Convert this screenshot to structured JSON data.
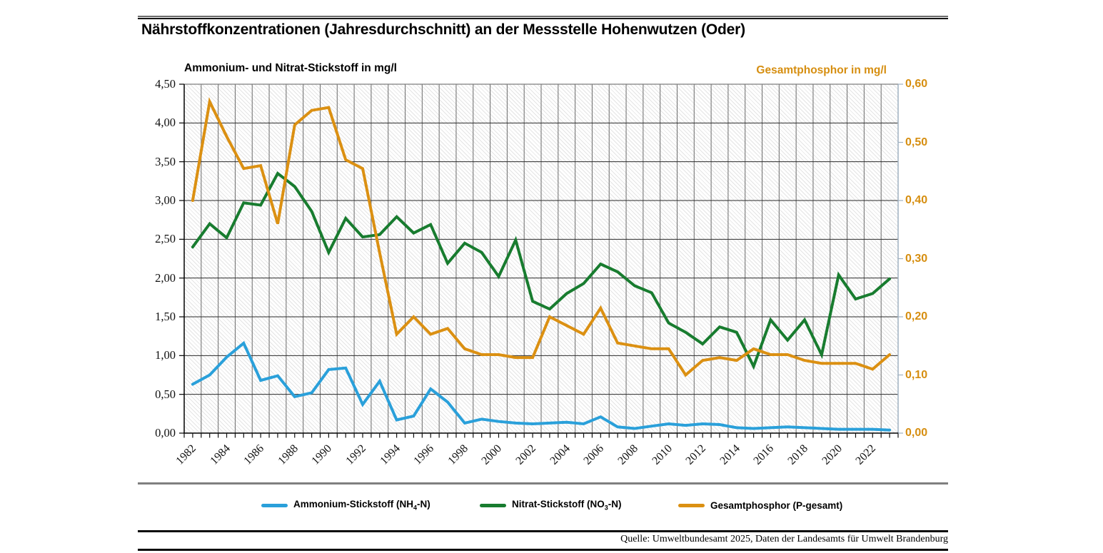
{
  "title": "Nährstoffkonzentrationen (Jahresdurchschnitt) an der Messstelle Hohenwutzen (Oder)",
  "source": "Quelle: Umweltbundesamt 2025, Daten der Landesamts für Umwelt Brandenburg",
  "legend": {
    "items": [
      {
        "pre": "Ammonium-Stickstoff (NH",
        "sub": "4",
        "post": "-N)",
        "series_index": 0
      },
      {
        "pre": "Nitrat-Stickstoff (NO",
        "sub": "3",
        "post": "-N)",
        "series_index": 1
      },
      {
        "pre": "Gesamtphosphor (P-gesamt)",
        "sub": "",
        "post": "",
        "series_index": 2
      }
    ]
  },
  "chart_data": {
    "type": "line",
    "x": [
      1982,
      1983,
      1984,
      1985,
      1986,
      1987,
      1988,
      1989,
      1990,
      1991,
      1992,
      1993,
      1994,
      1995,
      1996,
      1997,
      1998,
      1999,
      2000,
      2001,
      2002,
      2003,
      2004,
      2005,
      2006,
      2007,
      2008,
      2009,
      2010,
      2011,
      2012,
      2013,
      2014,
      2015,
      2016,
      2017,
      2018,
      2019,
      2020,
      2021,
      2022,
      2023
    ],
    "x_tick_labels": [
      "1982",
      "1984",
      "1986",
      "1988",
      "1990",
      "1992",
      "1994",
      "1996",
      "1998",
      "2000",
      "2002",
      "2004",
      "2006",
      "2008",
      "2010",
      "2012",
      "2014",
      "2016",
      "2018",
      "2020",
      "2022"
    ],
    "left_axis": {
      "title": "Ammonium- und Nitrat-Stickstoff in mg/l",
      "range": [
        0,
        4.5
      ],
      "tick_step": 0.5,
      "tick_labels": [
        "0,00",
        "0,50",
        "1,00",
        "1,50",
        "2,00",
        "2,50",
        "3,00",
        "3,50",
        "4,00",
        "4,50"
      ]
    },
    "right_axis": {
      "title": "Gesamtphosphor in mg/l",
      "range": [
        0,
        0.6
      ],
      "tick_step": 0.1,
      "tick_labels": [
        "0,00",
        "0,10",
        "0,20",
        "0,30",
        "0,40",
        "0,50",
        "0,60"
      ],
      "color": "#D68E10"
    },
    "grid": true,
    "legend_position": "bottom",
    "series": [
      {
        "name": "Ammonium-Stickstoff (NH4-N)",
        "axis": "left",
        "color": "#2AA0DA",
        "values": [
          0.63,
          0.75,
          0.98,
          1.16,
          0.68,
          0.74,
          0.47,
          0.52,
          0.82,
          0.84,
          0.37,
          0.67,
          0.17,
          0.22,
          0.57,
          0.4,
          0.13,
          0.18,
          0.15,
          0.13,
          0.12,
          0.13,
          0.14,
          0.12,
          0.21,
          0.08,
          0.06,
          0.09,
          0.12,
          0.1,
          0.12,
          0.11,
          0.07,
          0.06,
          0.07,
          0.08,
          0.07,
          0.06,
          0.05,
          0.05,
          0.05,
          0.04
        ]
      },
      {
        "name": "Nitrat-Stickstoff (NO3-N)",
        "axis": "left",
        "color": "#187C2F",
        "values": [
          2.4,
          2.7,
          2.52,
          2.97,
          2.94,
          3.35,
          3.18,
          2.86,
          2.33,
          2.77,
          2.53,
          2.56,
          2.79,
          2.58,
          2.69,
          2.19,
          2.45,
          2.33,
          2.02,
          2.49,
          1.7,
          1.6,
          1.8,
          1.93,
          2.18,
          2.08,
          1.9,
          1.81,
          1.42,
          1.3,
          1.15,
          1.37,
          1.3,
          0.86,
          1.46,
          1.2,
          1.46,
          1.01,
          2.04,
          1.73,
          1.8,
          1.99
        ]
      },
      {
        "name": "Gesamtphosphor (P-gesamt)",
        "axis": "right",
        "color": "#DB9012",
        "values": [
          0.4,
          0.57,
          0.51,
          0.455,
          0.46,
          0.36,
          0.53,
          0.555,
          0.56,
          0.47,
          0.455,
          0.31,
          0.17,
          0.2,
          0.17,
          0.18,
          0.145,
          0.135,
          0.135,
          0.13,
          0.13,
          0.2,
          0.185,
          0.17,
          0.215,
          0.155,
          0.15,
          0.145,
          0.145,
          0.1,
          0.125,
          0.13,
          0.125,
          0.145,
          0.135,
          0.135,
          0.125,
          0.12,
          0.12,
          0.12,
          0.11,
          0.135
        ]
      }
    ]
  }
}
